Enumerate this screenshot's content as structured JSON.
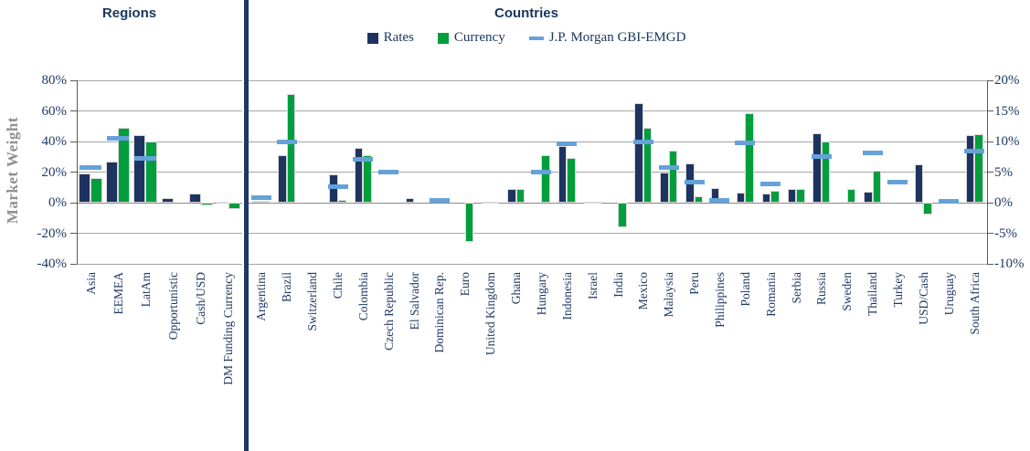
{
  "titles": {
    "regions": "Regions",
    "countries": "Countries"
  },
  "y_axis": {
    "title": "Market Weight"
  },
  "legend": {
    "position": "top",
    "items": [
      {
        "label": "Rates",
        "marker": "square",
        "color": "#1e3460"
      },
      {
        "label": "Currency",
        "marker": "square",
        "color": "#009e3d"
      },
      {
        "label": "J.P. Morgan GBI-EMGD",
        "marker": "dash",
        "color": "#64a2d9"
      }
    ]
  },
  "colors": {
    "rates": "#1e3460",
    "currency": "#009e3d",
    "gbi": "#64a2d9",
    "text_navy": "#1f3864",
    "gridline": "#a6a6a6",
    "zero_line": "#8a8a8a",
    "axis": "#595959",
    "divider": "#1f3864",
    "y_title_gray": "#8e9093"
  },
  "chart_data": [
    {
      "type": "bar",
      "title": "Regions",
      "ylabel": "Market Weight",
      "ylim": [
        -40,
        80
      ],
      "yticks": [
        "80%",
        "60%",
        "40%",
        "20%",
        "0%",
        "-20%",
        "-40%"
      ],
      "axis_side": "left",
      "grid": true,
      "categories": [
        "Asia",
        "EEMEA",
        "LatAm",
        "Opportunistic",
        "Cash/USD",
        "DM Funding Currency"
      ],
      "series": [
        {
          "name": "Rates",
          "values": [
            19,
            27,
            44,
            3,
            6,
            0.4
          ]
        },
        {
          "name": "Currency",
          "values": [
            16,
            49,
            40,
            0,
            -2,
            -4
          ]
        },
        {
          "name": "J.P. Morgan GBI-EMGD",
          "values": [
            23,
            42,
            29,
            null,
            null,
            null
          ]
        }
      ]
    },
    {
      "type": "bar",
      "title": "Countries",
      "ylim": [
        -10,
        20
      ],
      "yticks": [
        "20%",
        "15%",
        "10%",
        "5%",
        "0%",
        "-5%",
        "-10%"
      ],
      "axis_side": "right",
      "grid": true,
      "categories": [
        "Argentina",
        "Brazil",
        "Switzerland",
        "Chile",
        "Colombia",
        "Czech Republic",
        "El Salvador",
        "Dominican Rep.",
        "Euro",
        "United Kingdom",
        "Ghana",
        "Hungary",
        "Indonesia",
        "Israel",
        "India",
        "Mexico",
        "Malaysia",
        "Peru",
        "Philippines",
        "Poland",
        "Romania",
        "Serbia",
        "Russia",
        "Sweden",
        "Thailand",
        "Turkey",
        "USD/Cash",
        "Uruguay",
        "South Africa"
      ],
      "series": [
        {
          "name": "Rates",
          "values": [
            0.3,
            7.7,
            0,
            4.7,
            9.0,
            0,
            0.8,
            0,
            0,
            0.15,
            2.2,
            0,
            9.2,
            0.15,
            0,
            16.3,
            5.0,
            6.4,
            2.4,
            1.6,
            1.5,
            2.2,
            11.3,
            0,
            1.8,
            0,
            6.2,
            0,
            11.0
          ]
        },
        {
          "name": "Currency",
          "values": [
            0.3,
            17.8,
            0,
            0.5,
            7.8,
            0,
            0,
            0,
            -6.4,
            0.15,
            2.2,
            7.8,
            7.3,
            0.15,
            -4.0,
            12.2,
            8.5,
            1.0,
            0,
            14.6,
            1.9,
            2.2,
            10.0,
            2.2,
            5.2,
            0,
            -2.0,
            0,
            11.2
          ]
        },
        {
          "name": "J.P. Morgan GBI-EMGD",
          "values": [
            0.8,
            9.9,
            null,
            2.6,
            7.1,
            5.0,
            null,
            0.3,
            null,
            null,
            null,
            5.0,
            9.6,
            null,
            null,
            10.0,
            5.8,
            3.3,
            0.4,
            9.8,
            3.0,
            null,
            7.5,
            null,
            8.2,
            3.4,
            null,
            0.2,
            8.5
          ]
        }
      ]
    }
  ]
}
